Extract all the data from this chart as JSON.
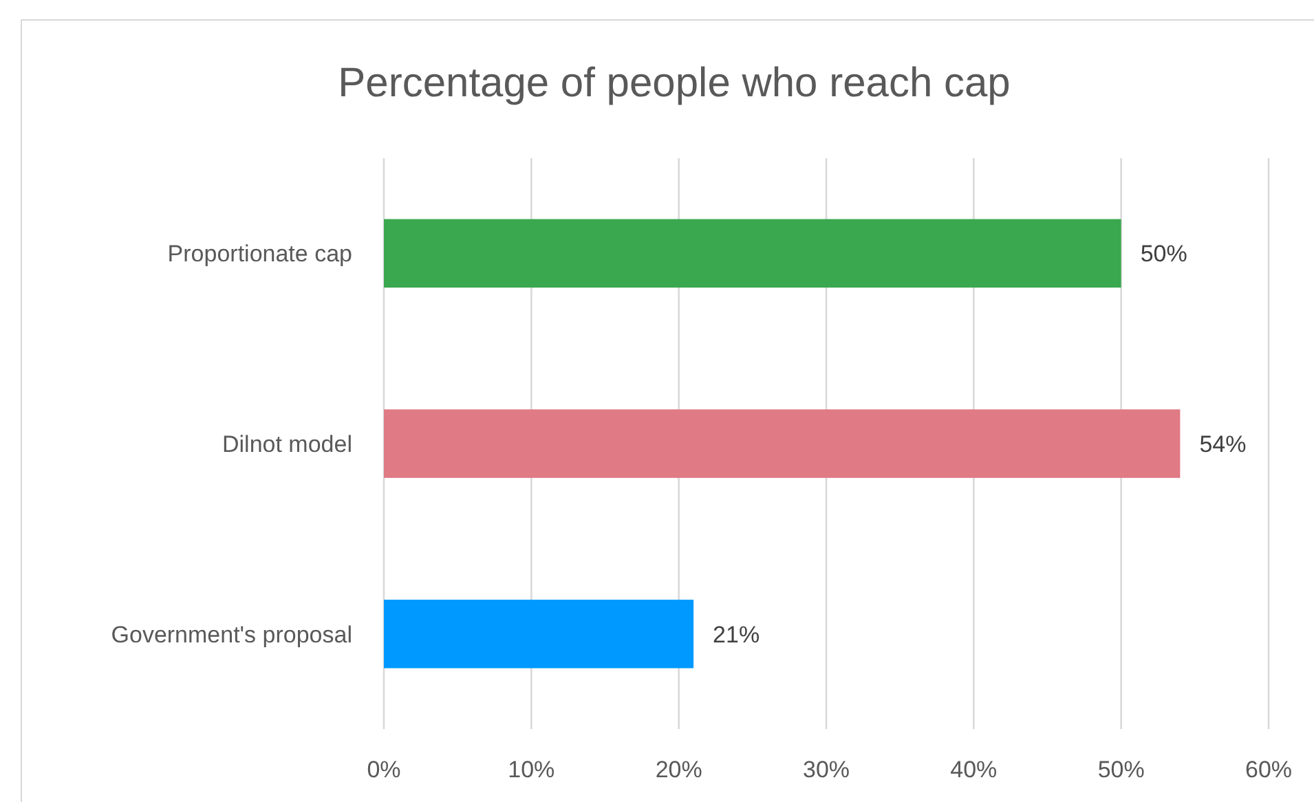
{
  "chart_data": {
    "type": "bar",
    "orientation": "horizontal",
    "title": "Percentage of people who reach cap",
    "categories": [
      "Proportionate cap",
      "Dilnot model",
      "Government's proposal"
    ],
    "values": [
      50,
      54,
      21
    ],
    "colors": [
      "#3aa84e",
      "#e07a85",
      "#0099ff"
    ],
    "value_labels": [
      "50%",
      "54%",
      "21%"
    ],
    "xlim": [
      0,
      60
    ],
    "xticks": [
      {
        "value": 0,
        "label": "0%"
      },
      {
        "value": 10,
        "label": "10%"
      },
      {
        "value": 20,
        "label": "20%"
      },
      {
        "value": 30,
        "label": "30%"
      },
      {
        "value": 40,
        "label": "40%"
      },
      {
        "value": 50,
        "label": "50%"
      },
      {
        "value": 60,
        "label": "60%"
      }
    ],
    "grid": "x"
  }
}
